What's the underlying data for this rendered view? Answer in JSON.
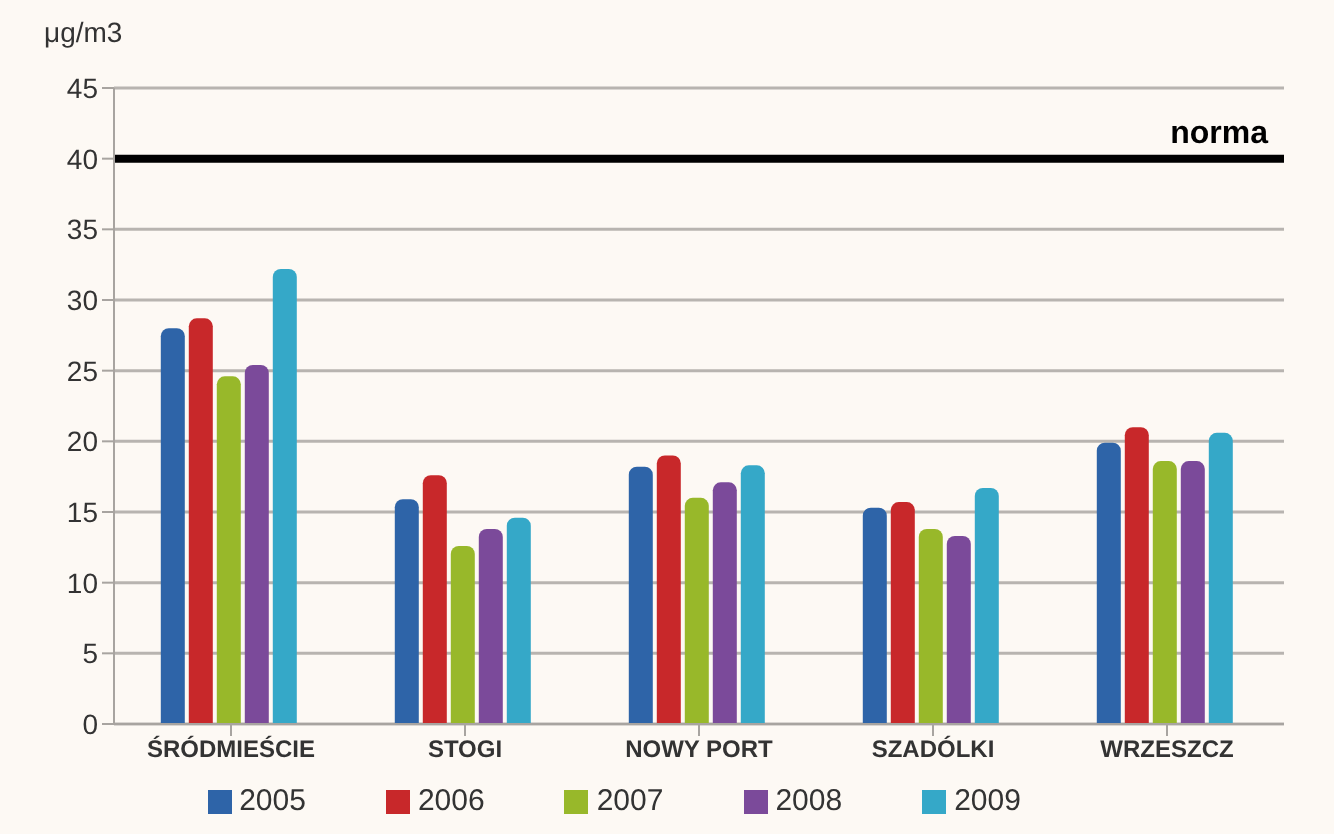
{
  "chart_data": {
    "type": "bar",
    "ylabel": "μg/m3",
    "categories": [
      "ŚRÓDMIEŚCIE",
      "STOGI",
      "NOWY PORT",
      "SZADÓLKI",
      "WRZESZCZ"
    ],
    "series": [
      {
        "name": "2005",
        "color": "#2e64a8",
        "values": [
          28,
          15.9,
          18.2,
          15.3,
          19.9
        ]
      },
      {
        "name": "2006",
        "color": "#c8282a",
        "values": [
          28.7,
          17.6,
          19,
          15.7,
          21
        ]
      },
      {
        "name": "2007",
        "color": "#98b82a",
        "values": [
          24.6,
          12.6,
          16,
          13.8,
          18.6
        ]
      },
      {
        "name": "2008",
        "color": "#7b4a9a",
        "values": [
          25.4,
          13.8,
          17.1,
          13.3,
          18.6
        ]
      },
      {
        "name": "2009",
        "color": "#35a8c8",
        "values": [
          32.2,
          14.6,
          18.3,
          16.7,
          20.6
        ]
      }
    ],
    "ylim": [
      0,
      45
    ],
    "yticks": [
      0,
      5,
      10,
      15,
      20,
      25,
      30,
      35,
      40,
      45
    ],
    "grid": "y",
    "legend": "bottom",
    "ref_lines": [
      {
        "axis": "y",
        "value": 40,
        "label": "norma",
        "color": "#000000"
      }
    ]
  }
}
